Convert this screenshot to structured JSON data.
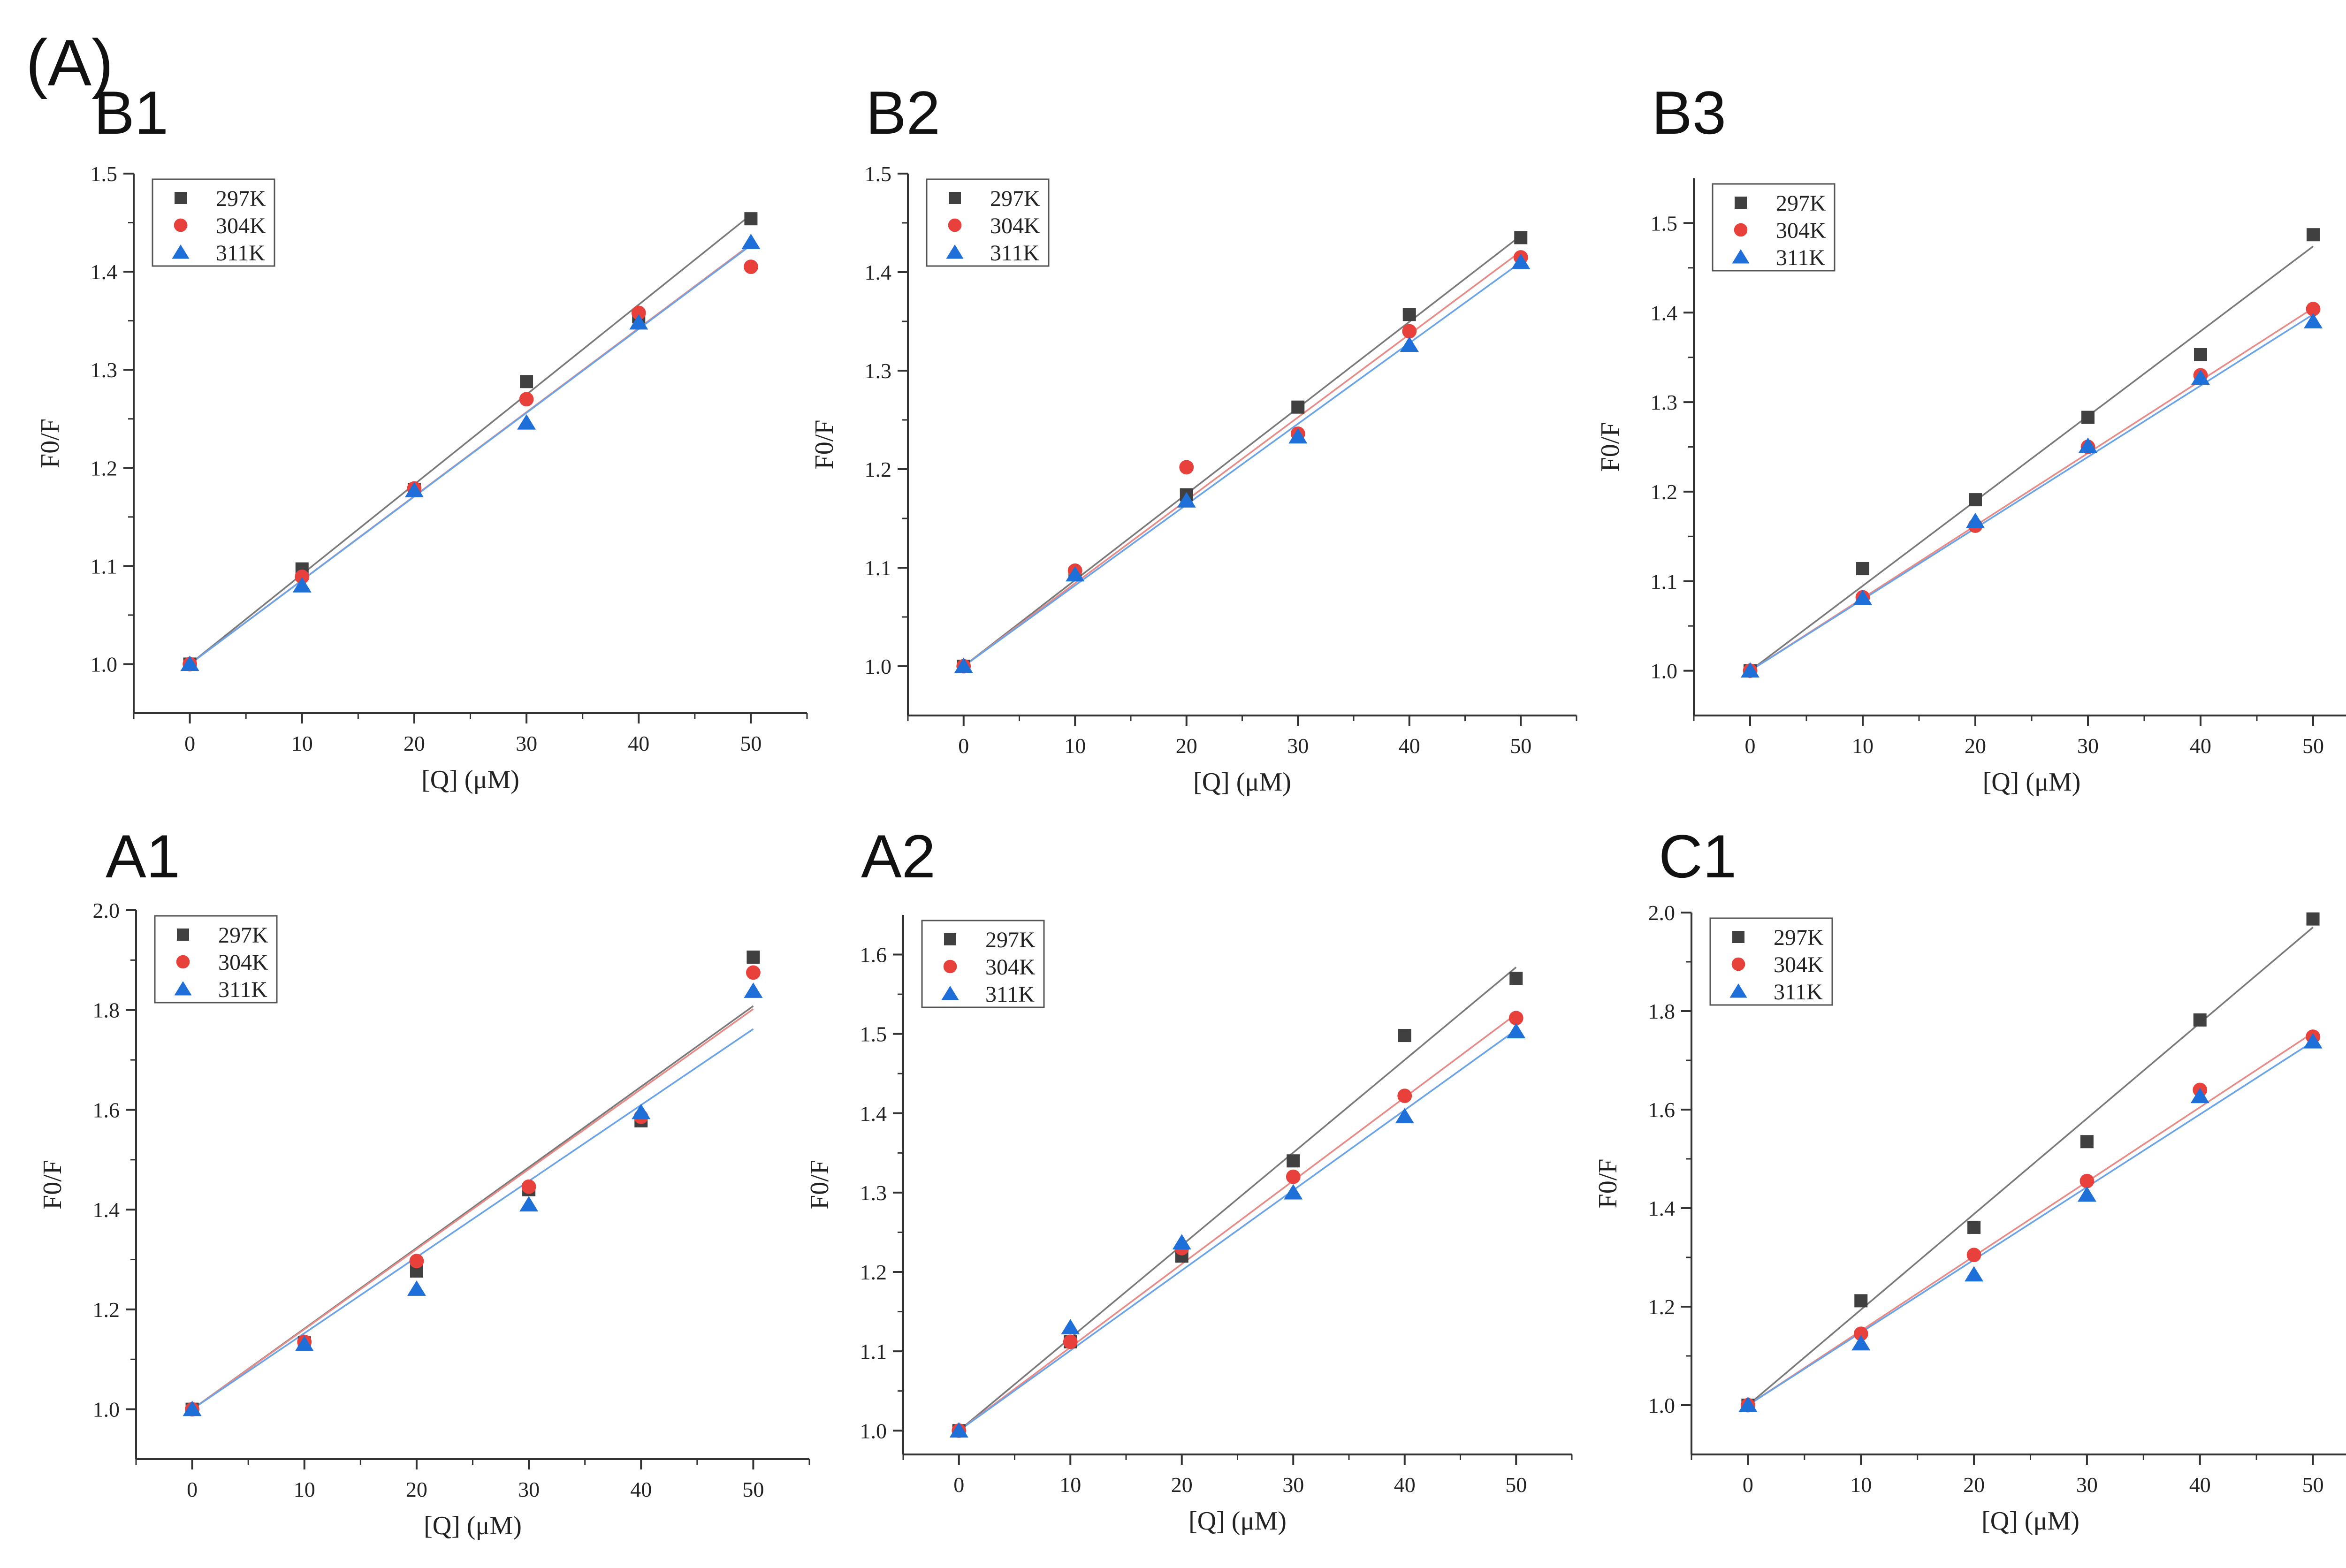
{
  "figure_label": "(A)",
  "colors": {
    "297K": "#404040",
    "304K": "#e8413c",
    "311K": "#1f6fd8",
    "axis": "#333333",
    "fit_297K": "#7a7a7a",
    "fit_304K": "#e88a86",
    "fit_311K": "#6aa3e8"
  },
  "chart_data": [
    {
      "type": "scatter",
      "panel": "B1",
      "xlabel": "[Q] (μM)",
      "ylabel": "F0/F",
      "xlim": [
        -5,
        55
      ],
      "ylim": [
        0.95,
        1.5
      ],
      "xticks": [
        0,
        10,
        20,
        30,
        40,
        50
      ],
      "yticks": [
        1.0,
        1.1,
        1.2,
        1.3,
        1.4,
        1.5
      ],
      "ytick_format": 1,
      "legend_position": "top-left",
      "series": [
        {
          "name": "297K",
          "marker": "square",
          "x": [
            0,
            10,
            20,
            30,
            40,
            50
          ],
          "y": [
            1.0,
            1.097,
            1.178,
            1.288,
            1.354,
            1.454
          ],
          "fit": [
            1.0,
            1.458
          ]
        },
        {
          "name": "304K",
          "marker": "circle",
          "x": [
            0,
            10,
            20,
            30,
            40,
            50
          ],
          "y": [
            1.0,
            1.089,
            1.179,
            1.27,
            1.358,
            1.405
          ],
          "fit": [
            1.0,
            1.428
          ]
        },
        {
          "name": "311K",
          "marker": "triangle",
          "x": [
            0,
            10,
            20,
            30,
            40,
            50
          ],
          "y": [
            1.0,
            1.08,
            1.177,
            1.246,
            1.348,
            1.43
          ],
          "fit": [
            1.0,
            1.427
          ]
        }
      ]
    },
    {
      "type": "scatter",
      "panel": "B2",
      "xlabel": "[Q] (μM)",
      "ylabel": "F0/F",
      "xlim": [
        -5,
        55
      ],
      "ylim": [
        0.95,
        1.5
      ],
      "xticks": [
        0,
        10,
        20,
        30,
        40,
        50
      ],
      "yticks": [
        1.0,
        1.1,
        1.2,
        1.3,
        1.4,
        1.5
      ],
      "ytick_format": 1,
      "legend_position": "top-left",
      "series": [
        {
          "name": "297K",
          "marker": "square",
          "x": [
            0,
            10,
            20,
            30,
            40,
            50
          ],
          "y": [
            1.0,
            1.094,
            1.174,
            1.263,
            1.357,
            1.435
          ],
          "fit": [
            1.0,
            1.437
          ]
        },
        {
          "name": "304K",
          "marker": "circle",
          "x": [
            0,
            10,
            20,
            30,
            40,
            50
          ],
          "y": [
            1.0,
            1.097,
            1.202,
            1.236,
            1.34,
            1.415
          ],
          "fit": [
            1.0,
            1.421
          ]
        },
        {
          "name": "311K",
          "marker": "triangle",
          "x": [
            0,
            10,
            20,
            30,
            40,
            50
          ],
          "y": [
            1.0,
            1.093,
            1.168,
            1.233,
            1.326,
            1.41
          ],
          "fit": [
            1.0,
            1.41
          ]
        }
      ]
    },
    {
      "type": "scatter",
      "panel": "B3",
      "xlabel": "[Q] (μM)",
      "ylabel": "F0/F",
      "xlim": [
        -5,
        55
      ],
      "ylim": [
        0.95,
        1.55
      ],
      "xticks": [
        0,
        10,
        20,
        30,
        40,
        50
      ],
      "yticks": [
        1.0,
        1.1,
        1.2,
        1.3,
        1.4,
        1.5
      ],
      "ytick_format": 1,
      "legend_position": "top-left",
      "series": [
        {
          "name": "297K",
          "marker": "square",
          "x": [
            0,
            10,
            20,
            30,
            40,
            50
          ],
          "y": [
            1.0,
            1.114,
            1.191,
            1.283,
            1.353,
            1.487
          ],
          "fit": [
            1.0,
            1.474
          ]
        },
        {
          "name": "304K",
          "marker": "circle",
          "x": [
            0,
            10,
            20,
            30,
            40,
            50
          ],
          "y": [
            1.0,
            1.082,
            1.162,
            1.25,
            1.33,
            1.404
          ],
          "fit": [
            1.0,
            1.405
          ]
        },
        {
          "name": "311K",
          "marker": "triangle",
          "x": [
            0,
            10,
            20,
            30,
            40,
            50
          ],
          "y": [
            1.0,
            1.081,
            1.167,
            1.251,
            1.327,
            1.39
          ],
          "fit": [
            1.0,
            1.398
          ]
        }
      ]
    },
    {
      "type": "scatter",
      "panel": "A1",
      "xlabel": "[Q] (μM)",
      "ylabel": "F0/F",
      "xlim": [
        -5,
        55
      ],
      "ylim": [
        0.9,
        2.0
      ],
      "xticks": [
        0,
        10,
        20,
        30,
        40,
        50
      ],
      "yticks": [
        1.0,
        1.2,
        1.4,
        1.6,
        1.8,
        2.0
      ],
      "ytick_format": 1,
      "legend_position": "top-left",
      "series": [
        {
          "name": "297K",
          "marker": "square",
          "x": [
            0,
            10,
            20,
            30,
            40,
            50
          ],
          "y": [
            1.0,
            1.133,
            1.277,
            1.44,
            1.578,
            1.906
          ],
          "fit": [
            1.0,
            1.808
          ]
        },
        {
          "name": "304K",
          "marker": "circle",
          "x": [
            0,
            10,
            20,
            30,
            40,
            50
          ],
          "y": [
            1.0,
            1.135,
            1.297,
            1.446,
            1.586,
            1.875
          ],
          "fit": [
            1.0,
            1.802
          ]
        },
        {
          "name": "311K",
          "marker": "triangle",
          "x": [
            0,
            10,
            20,
            30,
            40,
            50
          ],
          "y": [
            1.0,
            1.13,
            1.241,
            1.41,
            1.595,
            1.838
          ],
          "fit": [
            1.0,
            1.762
          ]
        }
      ]
    },
    {
      "type": "scatter",
      "panel": "A2",
      "xlabel": "[Q] (μM)",
      "ylabel": "F0/F",
      "xlim": [
        -5,
        55
      ],
      "ylim": [
        0.97,
        1.65
      ],
      "xticks": [
        0,
        10,
        20,
        30,
        40,
        50
      ],
      "yticks": [
        1.0,
        1.1,
        1.2,
        1.3,
        1.4,
        1.5,
        1.6
      ],
      "ytick_format": 1,
      "legend_position": "top-left",
      "series": [
        {
          "name": "297K",
          "marker": "square",
          "x": [
            0,
            10,
            20,
            30,
            40,
            50
          ],
          "y": [
            1.0,
            1.112,
            1.22,
            1.34,
            1.498,
            1.57
          ],
          "fit": [
            1.0,
            1.584
          ]
        },
        {
          "name": "304K",
          "marker": "circle",
          "x": [
            0,
            10,
            20,
            30,
            40,
            50
          ],
          "y": [
            1.0,
            1.112,
            1.23,
            1.32,
            1.422,
            1.52
          ],
          "fit": [
            1.0,
            1.525
          ]
        },
        {
          "name": "311K",
          "marker": "triangle",
          "x": [
            0,
            10,
            20,
            30,
            40,
            50
          ],
          "y": [
            1.0,
            1.13,
            1.237,
            1.3,
            1.396,
            1.503
          ],
          "fit": [
            1.0,
            1.505
          ]
        }
      ]
    },
    {
      "type": "scatter",
      "panel": "C1",
      "xlabel": "[Q] (μM)",
      "ylabel": "F0/F",
      "xlim": [
        -5,
        55
      ],
      "ylim": [
        0.9,
        2.0
      ],
      "xticks": [
        0,
        10,
        20,
        30,
        40,
        50
      ],
      "yticks": [
        1.0,
        1.2,
        1.4,
        1.6,
        1.8,
        2.0
      ],
      "ytick_format": 1,
      "legend_position": "top-left",
      "series": [
        {
          "name": "297K",
          "marker": "square",
          "x": [
            0,
            10,
            20,
            30,
            40,
            50
          ],
          "y": [
            1.0,
            1.212,
            1.361,
            1.535,
            1.782,
            1.987
          ],
          "fit": [
            1.0,
            1.97
          ]
        },
        {
          "name": "304K",
          "marker": "circle",
          "x": [
            0,
            10,
            20,
            30,
            40,
            50
          ],
          "y": [
            1.0,
            1.145,
            1.305,
            1.455,
            1.64,
            1.748
          ],
          "fit": [
            1.0,
            1.756
          ]
        },
        {
          "name": "311K",
          "marker": "triangle",
          "x": [
            0,
            10,
            20,
            30,
            40,
            50
          ],
          "y": [
            1.0,
            1.125,
            1.265,
            1.427,
            1.627,
            1.738
          ],
          "fit": [
            1.0,
            1.738
          ]
        }
      ]
    }
  ]
}
